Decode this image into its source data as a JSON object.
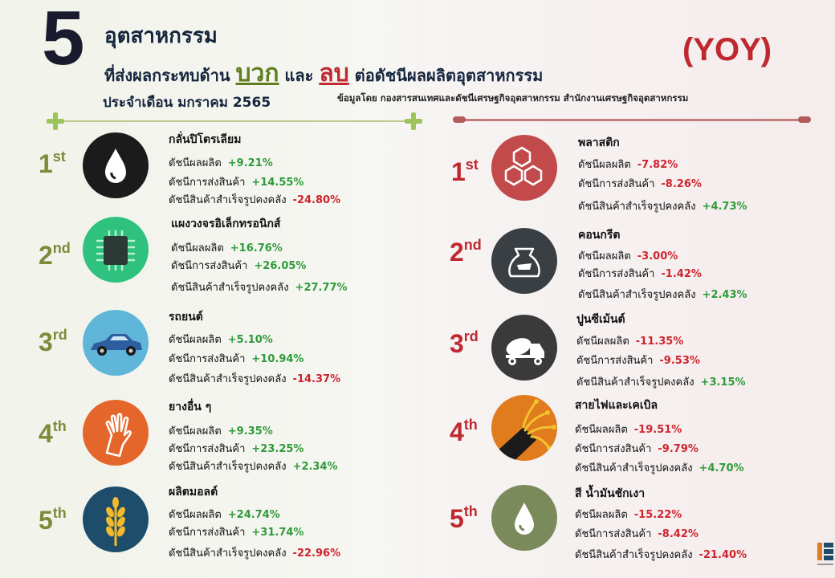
{
  "header": {
    "number": "5",
    "title": "อุตสาหกรรม",
    "line2_a": "ที่ส่งผลกระทบด้าน",
    "positive": "บวก",
    "line2_b": "และ",
    "negative": "ลบ",
    "line2_c": "ต่อดัชนีผลผลิตอุตสาหกรรม",
    "period": "ประจำเดือน มกราคม 2565",
    "yoy": "(YOY)",
    "source": "ข้อมูลโดย กองสารสนเทศและดัชนีเศรษฐกิจอุตสาหกรรม สำนักงานเศรษฐกิจอุตสาหกรรม"
  },
  "labels": {
    "production": "ดัชนีผลผลิต",
    "shipment": "ดัชนีการส่งสินค้า",
    "inventory": "ดัชนีสินค้าสำเร็จรูปคงคลัง"
  },
  "positive_list": [
    {
      "rank": "1",
      "suffix": "st",
      "name": "กลั่นปิโตรเลียม",
      "icon": "oil-drop-icon",
      "color": "#1b1b1b",
      "production": "+9.21%",
      "shipment": "+14.55%",
      "inventory": "-24.80%"
    },
    {
      "rank": "2",
      "suffix": "nd",
      "name": "แผงวงจรอิเล็กทรอนิกส์",
      "icon": "chip-icon",
      "color": "#2ec27e",
      "production": "+16.76%",
      "shipment": "+26.05%",
      "inventory": "+27.77%"
    },
    {
      "rank": "3",
      "suffix": "rd",
      "name": "รถยนต์",
      "icon": "car-icon",
      "color": "#5fb6d9",
      "production": "+5.10%",
      "shipment": "+10.94%",
      "inventory": "-14.37%"
    },
    {
      "rank": "4",
      "suffix": "th",
      "name": "ยางอื่น ๆ",
      "icon": "rubber-glove-icon",
      "color": "#e5662a",
      "production": "+9.35%",
      "shipment": "+23.25%",
      "inventory": "+2.34%"
    },
    {
      "rank": "5",
      "suffix": "th",
      "name": "ผลิตมอลต์",
      "icon": "wheat-icon",
      "color": "#1d4d6b",
      "production": "+24.74%",
      "shipment": "+31.74%",
      "inventory": "-22.96%"
    }
  ],
  "negative_list": [
    {
      "rank": "1",
      "suffix": "st",
      "name": "พลาสติก",
      "icon": "hexagon-icon",
      "color": "#c24a4a",
      "production": "-7.82%",
      "shipment": "-8.26%",
      "inventory": "+4.73%"
    },
    {
      "rank": "2",
      "suffix": "nd",
      "name": "คอนกรีต",
      "icon": "cement-bag-icon",
      "color": "#3a3f44",
      "production": "-3.00%",
      "shipment": "-1.42%",
      "inventory": "+2.43%"
    },
    {
      "rank": "3",
      "suffix": "rd",
      "name": "ปูนซีเม้นต์",
      "icon": "mixer-truck-icon",
      "color": "#3a3a3a",
      "production": "-11.35%",
      "shipment": "-9.53%",
      "inventory": "+3.15%"
    },
    {
      "rank": "4",
      "suffix": "th",
      "name": "สายไฟและเคเบิล",
      "icon": "cable-icon",
      "color": "#e07b1e",
      "production": "-19.51%",
      "shipment": "-9.79%",
      "inventory": "+4.70%"
    },
    {
      "rank": "5",
      "suffix": "th",
      "name": "สี น้ำมันชักเงา",
      "icon": "paint-drop-icon",
      "color": "#7a8a5a",
      "production": "-15.22%",
      "shipment": "-8.42%",
      "inventory": "-21.40%"
    }
  ]
}
